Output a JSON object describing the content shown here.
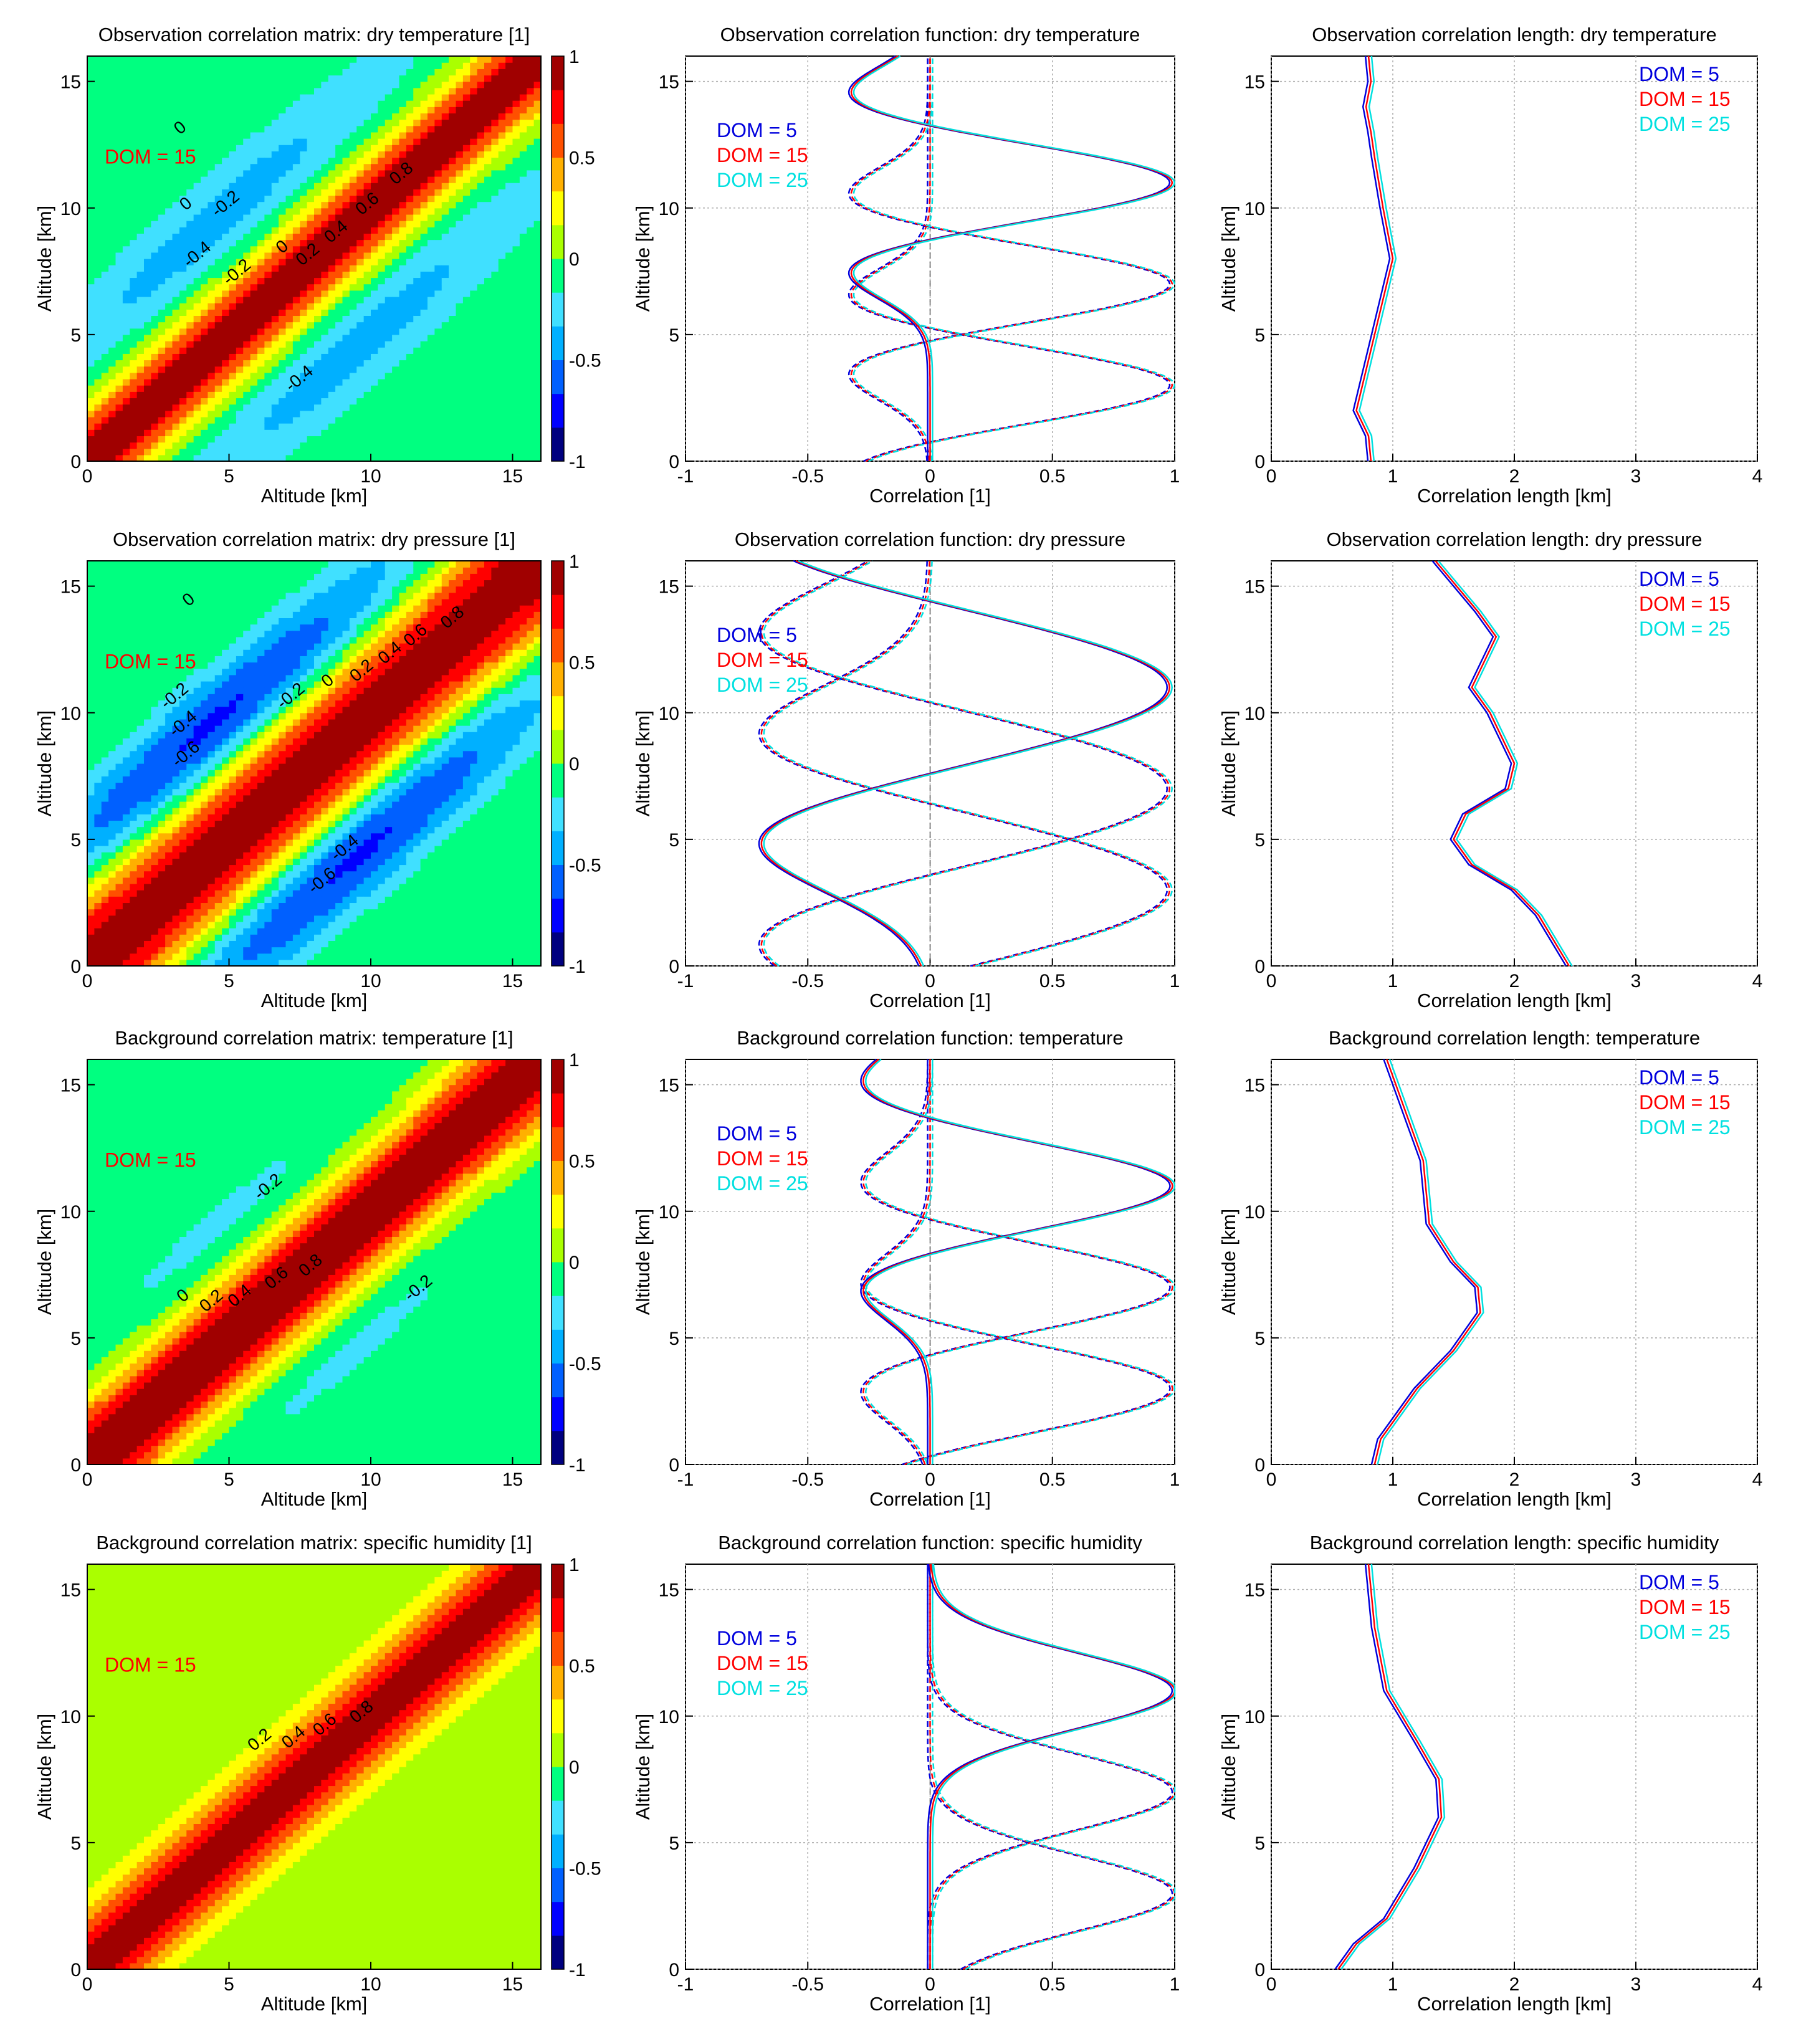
{
  "colors": {
    "dom5": "#0000dd",
    "dom15": "#ff0000",
    "dom25": "#00e0e0",
    "grid": "#aaaaaa",
    "colormap": [
      "#00007f",
      "#0000ff",
      "#0060ff",
      "#00b0ff",
      "#40e0ff",
      "#00ff80",
      "#aaff00",
      "#ffff00",
      "#ffb000",
      "#ff5000",
      "#ff0000",
      "#a00000"
    ]
  },
  "chart_data": [
    {
      "type": "heatmap",
      "title": "Observation correlation matrix: dry temperature [1]",
      "xlabel": "Altitude [km]",
      "ylabel": "Altitude [km]",
      "xlim": [
        0,
        16
      ],
      "ylim": [
        0,
        16
      ],
      "xticks": [
        "0",
        "5",
        "10",
        "15"
      ],
      "yticks": [
        "0",
        "5",
        "10",
        "15"
      ],
      "colorbar": {
        "range": [
          -1,
          1
        ],
        "ticks": [
          "1",
          "0.5",
          "0",
          "-0.5",
          "-1"
        ]
      },
      "dom_label": "DOM = 15",
      "diagonal_width_km": 1.4,
      "off_diagonal_offset_km": 5.0,
      "off_diagonal_min": -0.4,
      "contour_labels": [
        {
          "text": "0",
          "x": 3.4,
          "y": 13.0
        },
        {
          "text": "0",
          "x": 3.6,
          "y": 10.0
        },
        {
          "text": "-0.2",
          "x": 5.0,
          "y": 10.0
        },
        {
          "text": "-0.4",
          "x": 4.0,
          "y": 8.0
        },
        {
          "text": "-0.2",
          "x": 5.4,
          "y": 7.3
        },
        {
          "text": "0",
          "x": 7.0,
          "y": 8.3
        },
        {
          "text": "0.2",
          "x": 7.9,
          "y": 8.0
        },
        {
          "text": "0.4",
          "x": 8.9,
          "y": 8.9
        },
        {
          "text": "0.6",
          "x": 10.0,
          "y": 10.0
        },
        {
          "text": "0.8",
          "x": 11.2,
          "y": 11.2
        },
        {
          "text": "-0.4",
          "x": 7.6,
          "y": 3.1
        }
      ]
    },
    {
      "type": "line",
      "title": "Observation correlation function: dry temperature",
      "xlabel": "Correlation [1]",
      "ylabel": "Altitude [km]",
      "xlim": [
        -1,
        1
      ],
      "ylim": [
        0,
        16
      ],
      "xticks": [
        "-1",
        "-0.5",
        "0",
        "0.5",
        "1"
      ],
      "yticks": [
        "0",
        "5",
        "10",
        "15"
      ],
      "legend": [
        "DOM = 5",
        "DOM = 15",
        "DOM = 25"
      ],
      "center_altitudes_km": [
        3,
        7,
        11
      ],
      "correlation_width_km": 1.3,
      "negative_lobe": -0.35
    },
    {
      "type": "line",
      "title": "Observation correlation length: dry temperature",
      "xlabel": "Correlation length [km]",
      "ylabel": "Altitude [km]",
      "xlim": [
        0,
        4
      ],
      "ylim": [
        0,
        16
      ],
      "xticks": [
        "0",
        "1",
        "2",
        "3",
        "4"
      ],
      "yticks": [
        "0",
        "5",
        "10",
        "15"
      ],
      "legend": [
        "DOM = 5",
        "DOM = 15",
        "DOM = 25"
      ],
      "series": [
        {
          "name": "DOM = 5",
          "x": [
            0.82,
            0.8,
            0.7,
            0.75,
            0.85,
            0.95,
            1.0,
            0.92,
            0.85,
            0.82,
            0.78,
            0.82,
            0.8
          ],
          "y": [
            0,
            1,
            2,
            3,
            5,
            7,
            8,
            10,
            12,
            13,
            14,
            15,
            16
          ]
        }
      ]
    },
    {
      "type": "heatmap",
      "title": "Observation correlation matrix: dry pressure [1]",
      "xlabel": "Altitude [km]",
      "ylabel": "Altitude [km]",
      "xlim": [
        0,
        16
      ],
      "ylim": [
        0,
        16
      ],
      "xticks": [
        "0",
        "5",
        "10",
        "15"
      ],
      "yticks": [
        "0",
        "5",
        "10",
        "15"
      ],
      "colorbar": {
        "range": [
          -1,
          1
        ],
        "ticks": [
          "1",
          "0.5",
          "0",
          "-0.5",
          "-1"
        ]
      },
      "dom_label": "DOM = 15",
      "diagonal_width_km": 2.2,
      "off_diagonal_offset_km": 5.0,
      "off_diagonal_min": -0.75,
      "contour_labels": [
        {
          "text": "0",
          "x": 3.7,
          "y": 14.3
        },
        {
          "text": "-0.2",
          "x": 3.2,
          "y": 10.5
        },
        {
          "text": "-0.4",
          "x": 3.5,
          "y": 9.4
        },
        {
          "text": "-0.6",
          "x": 3.6,
          "y": 8.2
        },
        {
          "text": "-0.2",
          "x": 7.3,
          "y": 10.5
        },
        {
          "text": "0",
          "x": 8.6,
          "y": 11.1
        },
        {
          "text": "0.2",
          "x": 9.8,
          "y": 11.5
        },
        {
          "text": "0.4",
          "x": 10.8,
          "y": 12.2
        },
        {
          "text": "0.6",
          "x": 11.7,
          "y": 12.9
        },
        {
          "text": "0.8",
          "x": 13.0,
          "y": 13.6
        },
        {
          "text": "-0.4",
          "x": 9.2,
          "y": 4.5
        },
        {
          "text": "-0.6",
          "x": 8.4,
          "y": 3.2
        }
      ]
    },
    {
      "type": "line",
      "title": "Observation correlation function: dry pressure",
      "xlabel": "Correlation [1]",
      "ylabel": "Altitude [km]",
      "xlim": [
        -1,
        1
      ],
      "ylim": [
        0,
        16
      ],
      "xticks": [
        "-1",
        "-0.5",
        "0",
        "0.5",
        "1"
      ],
      "yticks": [
        "0",
        "5",
        "10",
        "15"
      ],
      "legend": [
        "DOM = 5",
        "DOM = 15",
        "DOM = 25"
      ],
      "center_altitudes_km": [
        3,
        7,
        11
      ],
      "correlation_width_km": 2.3,
      "negative_lobe": -0.72
    },
    {
      "type": "line",
      "title": "Observation correlation length: dry pressure",
      "xlabel": "Correlation length [km]",
      "ylabel": "Altitude [km]",
      "xlim": [
        0,
        4
      ],
      "ylim": [
        0,
        16
      ],
      "xticks": [
        "0",
        "1",
        "2",
        "3",
        "4"
      ],
      "yticks": [
        "0",
        "5",
        "10",
        "15"
      ],
      "legend": [
        "DOM = 5",
        "DOM = 15",
        "DOM = 25"
      ],
      "series": [
        {
          "name": "DOM = 5",
          "x": [
            2.45,
            2.2,
            2.0,
            1.65,
            1.5,
            1.6,
            1.95,
            2.0,
            1.8,
            1.65,
            1.75,
            1.85,
            1.7,
            1.35
          ],
          "y": [
            0,
            2,
            3,
            4,
            5,
            6,
            7,
            8,
            10,
            11,
            12,
            13,
            14,
            16
          ]
        }
      ]
    },
    {
      "type": "heatmap",
      "title": "Background correlation matrix: temperature [1]",
      "xlabel": "Altitude [km]",
      "ylabel": "Altitude [km]",
      "xlim": [
        0,
        16
      ],
      "ylim": [
        0,
        16
      ],
      "xticks": [
        "0",
        "5",
        "10",
        "15"
      ],
      "yticks": [
        "0",
        "5",
        "10",
        "15"
      ],
      "colorbar": {
        "range": [
          -1,
          1
        ],
        "ticks": [
          "1",
          "0.5",
          "0",
          "-0.5",
          "-1"
        ]
      },
      "dom_label": "DOM = 15",
      "diagonal_width_km": 1.8,
      "off_diagonal_offset_km": 4.5,
      "off_diagonal_min": -0.22,
      "contour_labels": [
        {
          "text": "-0.2",
          "x": 6.5,
          "y": 10.8
        },
        {
          "text": "0",
          "x": 3.5,
          "y": 6.5
        },
        {
          "text": "0.2",
          "x": 4.5,
          "y": 6.3
        },
        {
          "text": "0.4",
          "x": 5.5,
          "y": 6.5
        },
        {
          "text": "0.6",
          "x": 6.8,
          "y": 7.2
        },
        {
          "text": "0.8",
          "x": 8.0,
          "y": 7.7
        },
        {
          "text": "-0.2",
          "x": 11.8,
          "y": 6.8
        }
      ]
    },
    {
      "type": "line",
      "title": "Background correlation function: temperature",
      "xlabel": "Correlation [1]",
      "ylabel": "Altitude [km]",
      "xlim": [
        -1,
        1
      ],
      "ylim": [
        0,
        16
      ],
      "xticks": [
        "-1",
        "-0.5",
        "0",
        "0.5",
        "1"
      ],
      "yticks": [
        "0",
        "5",
        "10",
        "15"
      ],
      "legend": [
        "DOM = 5",
        "DOM = 15",
        "DOM = 25"
      ],
      "center_altitudes_km": [
        3,
        7,
        11
      ],
      "correlation_width_km": 1.5,
      "negative_lobe": -0.3
    },
    {
      "type": "line",
      "title": "Background correlation length: temperature",
      "xlabel": "Correlation length [km]",
      "ylabel": "Altitude [km]",
      "xlim": [
        0,
        4
      ],
      "ylim": [
        0,
        16
      ],
      "xticks": [
        "0",
        "1",
        "2",
        "3",
        "4"
      ],
      "yticks": [
        "0",
        "5",
        "10",
        "15"
      ],
      "legend": [
        "DOM = 5",
        "DOM = 15",
        "DOM = 25"
      ],
      "series": [
        {
          "name": "DOM = 5",
          "x": [
            0.85,
            0.9,
            1.2,
            1.5,
            1.72,
            1.7,
            1.5,
            1.3,
            1.25,
            1.1,
            0.95
          ],
          "y": [
            0,
            1,
            3,
            4.5,
            6,
            7,
            8,
            9.5,
            12,
            14,
            16
          ]
        }
      ]
    },
    {
      "type": "heatmap",
      "title": "Background correlation matrix: specific humidity [1]",
      "xlabel": "Altitude [km]",
      "ylabel": "Altitude [km]",
      "xlim": [
        0,
        16
      ],
      "ylim": [
        0,
        16
      ],
      "xticks": [
        "0",
        "5",
        "10",
        "15"
      ],
      "yticks": [
        "0",
        "5",
        "10",
        "15"
      ],
      "colorbar": {
        "range": [
          -1,
          1
        ],
        "ticks": [
          "1",
          "0.5",
          "0",
          "-0.5",
          "-1"
        ]
      },
      "dom_label": "DOM = 15",
      "diagonal_width_km": 1.6,
      "off_diagonal_offset_km": 5.0,
      "off_diagonal_min": 0,
      "contour_labels": [
        {
          "text": "0.2",
          "x": 6.2,
          "y": 8.9
        },
        {
          "text": "0.4",
          "x": 7.4,
          "y": 9.0
        },
        {
          "text": "0.6",
          "x": 8.5,
          "y": 9.5
        },
        {
          "text": "0.8",
          "x": 9.8,
          "y": 10.0
        }
      ]
    },
    {
      "type": "line",
      "title": "Background correlation function: specific humidity",
      "xlabel": "Correlation [1]",
      "ylabel": "Altitude [km]",
      "xlim": [
        -1,
        1
      ],
      "ylim": [
        0,
        16
      ],
      "xticks": [
        "-1",
        "-0.5",
        "0",
        "0.5",
        "1"
      ],
      "yticks": [
        "0",
        "5",
        "10",
        "15"
      ],
      "legend": [
        "DOM = 5",
        "DOM = 15",
        "DOM = 25"
      ],
      "center_altitudes_km": [
        3,
        7,
        11
      ],
      "correlation_width_km": 1.5,
      "negative_lobe": 0
    },
    {
      "type": "line",
      "title": "Background correlation length: specific humidity",
      "xlabel": "Correlation length [km]",
      "ylabel": "Altitude [km]",
      "xlim": [
        0,
        4
      ],
      "ylim": [
        0,
        16
      ],
      "xticks": [
        "0",
        "1",
        "2",
        "3",
        "4"
      ],
      "yticks": [
        "0",
        "5",
        "10",
        "15"
      ],
      "legend": [
        "DOM = 5",
        "DOM = 15",
        "DOM = 25"
      ],
      "series": [
        {
          "name": "DOM = 5",
          "x": [
            0.55,
            0.7,
            0.95,
            1.2,
            1.4,
            1.38,
            1.2,
            0.95,
            0.85,
            0.8
          ],
          "y": [
            0,
            1,
            2,
            4,
            6,
            7.5,
            9,
            11,
            13.5,
            16
          ]
        }
      ]
    }
  ]
}
